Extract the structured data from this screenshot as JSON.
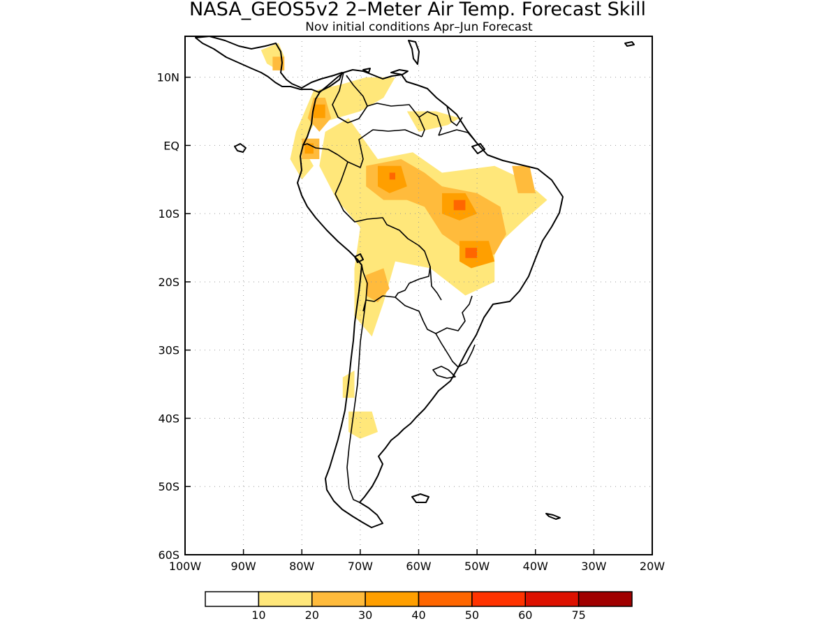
{
  "title": "NASA_GEOS5v2 2–Meter Air Temp. Forecast Skill",
  "subtitle": "Nov initial conditions  Apr–Jun Forecast",
  "map": {
    "lon_range": [
      -100,
      -20
    ],
    "lat_range": [
      -60,
      16
    ],
    "lat_ticks": [
      {
        "value": 10,
        "label": "10N"
      },
      {
        "value": 0,
        "label": "EQ"
      },
      {
        "value": -10,
        "label": "10S"
      },
      {
        "value": -20,
        "label": "20S"
      },
      {
        "value": -30,
        "label": "30S"
      },
      {
        "value": -40,
        "label": "40S"
      },
      {
        "value": -50,
        "label": "50S"
      },
      {
        "value": -60,
        "label": "60S"
      }
    ],
    "lon_ticks": [
      {
        "value": -100,
        "label": "100W"
      },
      {
        "value": -90,
        "label": "90W"
      },
      {
        "value": -80,
        "label": "80W"
      },
      {
        "value": -70,
        "label": "70W"
      },
      {
        "value": -60,
        "label": "60W"
      },
      {
        "value": -50,
        "label": "50W"
      },
      {
        "value": -40,
        "label": "40W"
      },
      {
        "value": -30,
        "label": "30W"
      },
      {
        "value": -20,
        "label": "20W"
      }
    ],
    "grid": true
  },
  "colorbar": {
    "colors": [
      "#ffffff",
      "#ffe77a",
      "#ffbb3c",
      "#ff9f00",
      "#ff6600",
      "#ff3300",
      "#dd1100",
      "#a00000"
    ],
    "labels": [
      "10",
      "20",
      "30",
      "40",
      "50",
      "60",
      "75"
    ]
  },
  "skill_regions": [
    {
      "level": 1,
      "points": [
        [
          -67,
          -2
        ],
        [
          -61,
          -1
        ],
        [
          -56,
          -4
        ],
        [
          -47,
          -3
        ],
        [
          -42,
          -5
        ],
        [
          -38,
          -8
        ],
        [
          -42,
          -11
        ],
        [
          -47,
          -15
        ],
        [
          -47,
          -20
        ],
        [
          -52,
          -22
        ],
        [
          -58,
          -18
        ],
        [
          -64,
          -17
        ],
        [
          -66,
          -23
        ],
        [
          -68,
          -28
        ],
        [
          -71,
          -25
        ],
        [
          -71,
          -18
        ],
        [
          -70,
          -12
        ],
        [
          -74,
          -8
        ],
        [
          -77,
          -3
        ],
        [
          -76,
          2
        ],
        [
          -72,
          4
        ]
      ]
    },
    {
      "level": 1,
      "points": [
        [
          -78,
          8
        ],
        [
          -73,
          9
        ],
        [
          -69,
          10
        ],
        [
          -64,
          10
        ],
        [
          -66,
          7
        ],
        [
          -70,
          5
        ],
        [
          -74,
          4
        ],
        [
          -78,
          3
        ],
        [
          -80,
          0
        ],
        [
          -78,
          -3
        ],
        [
          -80,
          -5
        ],
        [
          -82,
          -2
        ],
        [
          -81,
          2
        ]
      ]
    },
    {
      "level": 1,
      "points": [
        [
          -62,
          5
        ],
        [
          -57,
          5
        ],
        [
          -53,
          4
        ],
        [
          -55,
          3
        ],
        [
          -60,
          2
        ]
      ]
    },
    {
      "level": 1,
      "points": [
        [
          -87,
          14
        ],
        [
          -84,
          15
        ],
        [
          -83,
          13
        ],
        [
          -84,
          11
        ],
        [
          -86,
          12
        ]
      ]
    },
    {
      "level": 1,
      "points": [
        [
          -72,
          -39
        ],
        [
          -68,
          -39
        ],
        [
          -67,
          -42
        ],
        [
          -70,
          -43
        ],
        [
          -72,
          -42
        ]
      ]
    },
    {
      "level": 1,
      "points": [
        [
          -73,
          -34
        ],
        [
          -71,
          -33
        ],
        [
          -71,
          -37
        ],
        [
          -73,
          -37
        ]
      ]
    },
    {
      "level": 2,
      "points": [
        [
          -69,
          -3
        ],
        [
          -63,
          -2
        ],
        [
          -59,
          -4
        ],
        [
          -56,
          -6
        ],
        [
          -50,
          -7
        ],
        [
          -46,
          -9
        ],
        [
          -45,
          -13
        ],
        [
          -47,
          -16
        ],
        [
          -51,
          -16
        ],
        [
          -56,
          -13
        ],
        [
          -59,
          -9
        ],
        [
          -62,
          -8
        ],
        [
          -66,
          -8
        ],
        [
          -69,
          -6
        ]
      ]
    },
    {
      "level": 2,
      "points": [
        [
          -78,
          7
        ],
        [
          -76,
          7
        ],
        [
          -75,
          4
        ],
        [
          -77,
          2
        ],
        [
          -79,
          4
        ]
      ]
    },
    {
      "level": 2,
      "points": [
        [
          -80,
          1
        ],
        [
          -77,
          1
        ],
        [
          -77,
          -2
        ],
        [
          -80,
          -2
        ]
      ]
    },
    {
      "level": 2,
      "points": [
        [
          -69,
          -19
        ],
        [
          -66,
          -18
        ],
        [
          -65,
          -21
        ],
        [
          -67,
          -23
        ],
        [
          -69,
          -22
        ]
      ]
    },
    {
      "level": 2,
      "points": [
        [
          -44,
          -3
        ],
        [
          -41,
          -3
        ],
        [
          -40,
          -7
        ],
        [
          -43,
          -7
        ]
      ]
    },
    {
      "level": 2,
      "points": [
        [
          -85,
          13
        ],
        [
          -83,
          13
        ],
        [
          -83,
          11
        ],
        [
          -85,
          11
        ]
      ]
    },
    {
      "level": 3,
      "points": [
        [
          -67,
          -3
        ],
        [
          -63,
          -3
        ],
        [
          -62,
          -6
        ],
        [
          -65,
          -7
        ],
        [
          -67,
          -6
        ]
      ]
    },
    {
      "level": 3,
      "points": [
        [
          -56,
          -7
        ],
        [
          -52,
          -7
        ],
        [
          -50,
          -10
        ],
        [
          -53,
          -11
        ],
        [
          -56,
          -10
        ]
      ]
    },
    {
      "level": 3,
      "points": [
        [
          -53,
          -14
        ],
        [
          -48,
          -14
        ],
        [
          -47,
          -17
        ],
        [
          -51,
          -18
        ],
        [
          -53,
          -17
        ]
      ]
    },
    {
      "level": 3,
      "points": [
        [
          -78,
          6
        ],
        [
          -76,
          6
        ],
        [
          -76,
          4
        ],
        [
          -78,
          4
        ]
      ]
    },
    {
      "level": 3,
      "points": [
        [
          -79.5,
          0.3
        ],
        [
          -78,
          0.3
        ],
        [
          -78,
          -1.2
        ],
        [
          -79.5,
          -1.2
        ]
      ]
    },
    {
      "level": 4,
      "points": [
        [
          -65,
          -4
        ],
        [
          -64,
          -4
        ],
        [
          -64,
          -5
        ],
        [
          -65,
          -5
        ]
      ]
    },
    {
      "level": 4,
      "points": [
        [
          -54,
          -8
        ],
        [
          -52,
          -8
        ],
        [
          -52,
          -9.5
        ],
        [
          -54,
          -9.5
        ]
      ]
    },
    {
      "level": 4,
      "points": [
        [
          -52,
          -15
        ],
        [
          -50,
          -15
        ],
        [
          -50,
          -16.5
        ],
        [
          -52,
          -16.5
        ]
      ]
    }
  ]
}
